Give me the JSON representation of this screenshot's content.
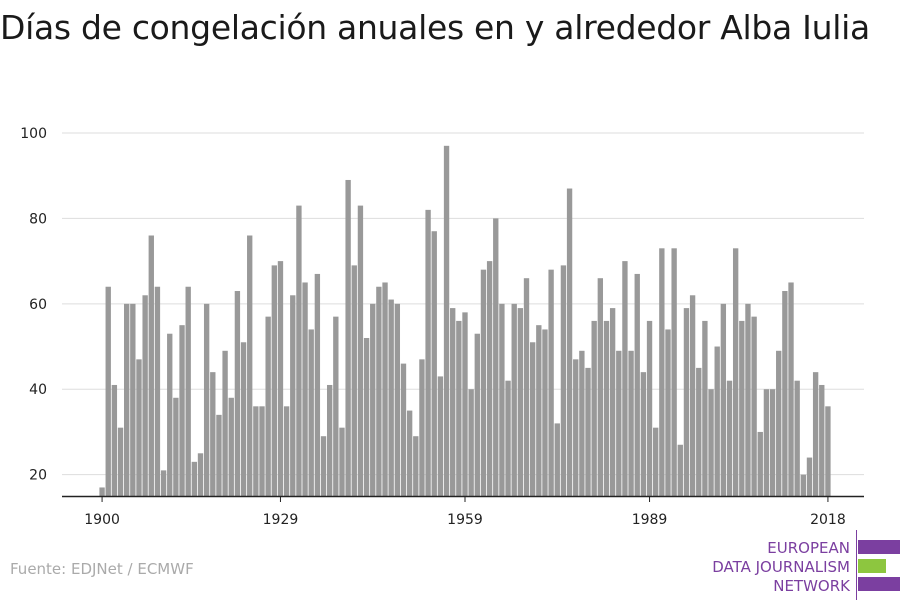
{
  "title": "Días de congelación anuales en y alrededor Alba Iulia",
  "source": "Fuente: EDJNet / ECMWF",
  "logo": {
    "line1": "EUROPEAN",
    "line2": "DATA JOURNALISM",
    "line3": "NETWORK",
    "colors": {
      "text": "#7b3fa0",
      "bar_purple": "#7b3fa0",
      "bar_green": "#8dc63f"
    }
  },
  "colors": {
    "bar": "#999999",
    "axis": "#222222",
    "grid": "#dddddd"
  },
  "chart_data": {
    "type": "bar",
    "title": "Días de congelación anuales en y alrededor Alba Iulia",
    "xlabel": "",
    "ylabel": "",
    "x_start": 1900,
    "x_end": 2019,
    "x_ticks": [
      1900,
      1929,
      1959,
      1989,
      2018
    ],
    "y_ticks": [
      20,
      40,
      60,
      80,
      100
    ],
    "ylim": [
      15,
      100
    ],
    "grid": true,
    "values": [
      17,
      64,
      41,
      31,
      60,
      60,
      47,
      62,
      76,
      64,
      21,
      53,
      38,
      55,
      64,
      23,
      25,
      60,
      44,
      34,
      49,
      38,
      63,
      51,
      76,
      36,
      36,
      57,
      69,
      70,
      36,
      62,
      83,
      65,
      54,
      67,
      29,
      41,
      57,
      31,
      89,
      69,
      83,
      52,
      60,
      64,
      65,
      61,
      60,
      46,
      35,
      29,
      47,
      82,
      77,
      43,
      97,
      59,
      56,
      58,
      40,
      53,
      68,
      70,
      80,
      60,
      42,
      60,
      59,
      66,
      51,
      55,
      54,
      68,
      32,
      69,
      87,
      47,
      49,
      45,
      56,
      66,
      56,
      59,
      49,
      70,
      49,
      67,
      44,
      56,
      31,
      73,
      54,
      73,
      27,
      59,
      62,
      45,
      56,
      40,
      50,
      60,
      42,
      73,
      56,
      60,
      57,
      30,
      40,
      40,
      49,
      63,
      65,
      42,
      20,
      24,
      44,
      41,
      36
    ]
  }
}
